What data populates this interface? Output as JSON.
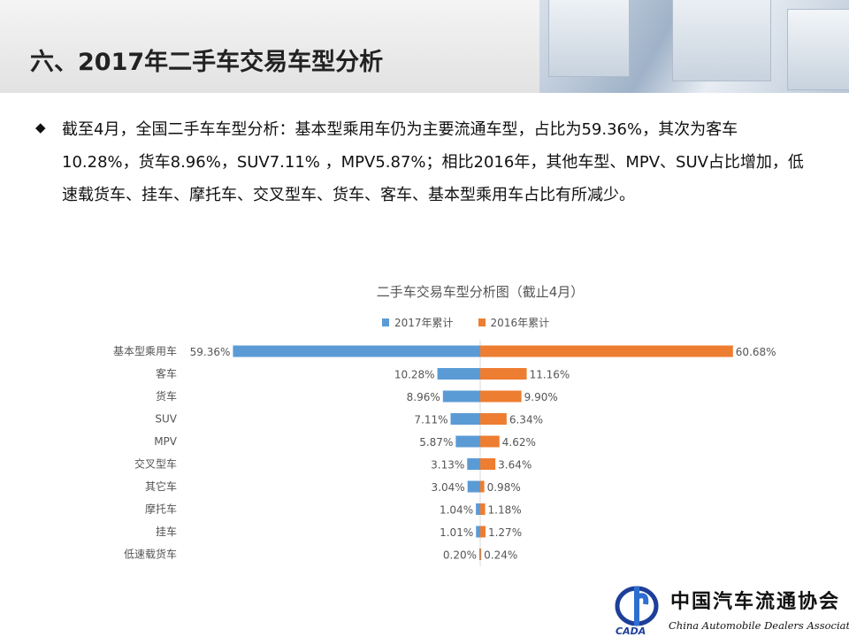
{
  "header": {
    "title": "六、2017年二手车交易车型分析"
  },
  "body": {
    "bullet_icon": "diamond-icon",
    "paragraph": "截至4月，全国二手车车型分析：基本型乘用车仍为主要流通车型，占比为59.36%，其次为客车10.28%，货车8.96%，SUV7.11% ，MPV5.87%；相比2016年，其他车型、MPV、SUV占比增加，低速载货车、挂车、摩托车、交叉型车、货车、客车、基本型乘用车占比有所减少。"
  },
  "chart_data": {
    "type": "bar",
    "orientation": "horizontal-butterfly",
    "title": "二手车交易车型分析图（截止4月）",
    "categories": [
      "基本型乘用车",
      "客车",
      "货车",
      "SUV",
      "MPV",
      "交叉型车",
      "其它车",
      "摩托车",
      "挂车",
      "低速载货车"
    ],
    "series": [
      {
        "name": "2017年累计",
        "color": "#5b9bd5",
        "values": [
          59.36,
          10.28,
          8.96,
          7.11,
          5.87,
          3.13,
          3.04,
          1.04,
          1.01,
          0.2
        ],
        "labels": [
          "59.36%",
          "10.28%",
          "8.96%",
          "7.11%",
          "5.87%",
          "3.13%",
          "3.04%",
          "1.04%",
          "1.01%",
          "0.20%"
        ]
      },
      {
        "name": "2016年累计",
        "color": "#ed7d31",
        "values": [
          60.68,
          11.16,
          9.9,
          6.34,
          4.62,
          3.64,
          0.98,
          1.18,
          1.27,
          0.24
        ],
        "labels": [
          "60.68%",
          "11.16%",
          "9.90%",
          "6.34%",
          "4.62%",
          "3.64%",
          "0.98%",
          "1.18%",
          "1.27%",
          "0.24%"
        ]
      }
    ],
    "unit": "%",
    "legend": "top"
  },
  "logo": {
    "cn": "中国汽车流通协会",
    "en": "China Automobile Dealers Association",
    "abbr": "CADA"
  }
}
